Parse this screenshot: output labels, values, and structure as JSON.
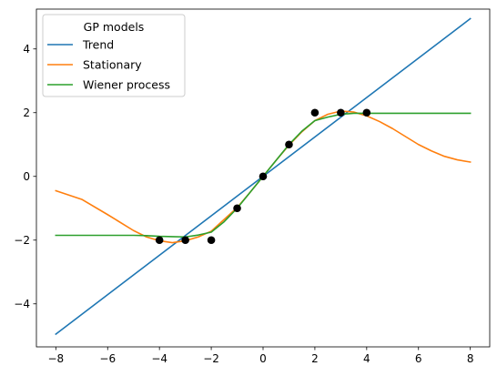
{
  "chart_data": {
    "type": "line",
    "xlim": [
      -8.75,
      8.75
    ],
    "ylim": [
      -5.35,
      5.25
    ],
    "xticks": [
      -8,
      -6,
      -4,
      -2,
      0,
      2,
      4,
      6,
      8
    ],
    "yticks": [
      -4,
      -2,
      0,
      2,
      4
    ],
    "grid": false,
    "legend": {
      "title": "GP models",
      "placement": "top-left",
      "entries": [
        "Trend",
        "Stationary",
        "Wiener process"
      ]
    },
    "observations": {
      "color": "#000000",
      "x": [
        -4,
        -3,
        -2,
        -1,
        0,
        1,
        2,
        3,
        4
      ],
      "y": [
        -2,
        -2,
        -2,
        -1,
        0,
        1,
        2,
        2,
        2
      ]
    },
    "series": [
      {
        "name": "Trend",
        "color": "#1f77b4",
        "x": [
          -8,
          8
        ],
        "y": [
          -4.95,
          4.95
        ]
      },
      {
        "name": "Stationary",
        "color": "#ff7f0e",
        "x": [
          -8,
          -7,
          -6,
          -5,
          -4.5,
          -4,
          -3.5,
          -3,
          -2.5,
          -2,
          -1.5,
          -1,
          -0.5,
          0,
          0.5,
          1,
          1.5,
          2,
          2.5,
          3,
          3.5,
          4,
          4.5,
          5,
          5.5,
          6,
          6.5,
          7,
          7.5,
          8
        ],
        "y": [
          -0.45,
          -0.72,
          -1.2,
          -1.7,
          -1.9,
          -2.02,
          -2.08,
          -2.02,
          -1.9,
          -1.72,
          -1.35,
          -0.98,
          -0.5,
          0.0,
          0.5,
          0.98,
          1.4,
          1.75,
          1.95,
          2.05,
          2.02,
          1.9,
          1.72,
          1.5,
          1.25,
          1.0,
          0.8,
          0.63,
          0.52,
          0.45
        ]
      },
      {
        "name": "Wiener process",
        "color": "#2ca02c",
        "x": [
          -8,
          -5,
          -4.5,
          -4,
          -3.5,
          -3,
          -2.5,
          -2,
          -1.5,
          -1,
          -0.5,
          0,
          0.5,
          1,
          1.5,
          2,
          2.5,
          3,
          3.5,
          4,
          5,
          8
        ],
        "y": [
          -1.85,
          -1.85,
          -1.86,
          -1.88,
          -1.89,
          -1.9,
          -1.84,
          -1.75,
          -1.42,
          -1.0,
          -0.5,
          0.0,
          0.5,
          1.0,
          1.42,
          1.75,
          1.86,
          1.95,
          1.98,
          1.98,
          1.98,
          1.98
        ]
      }
    ]
  }
}
